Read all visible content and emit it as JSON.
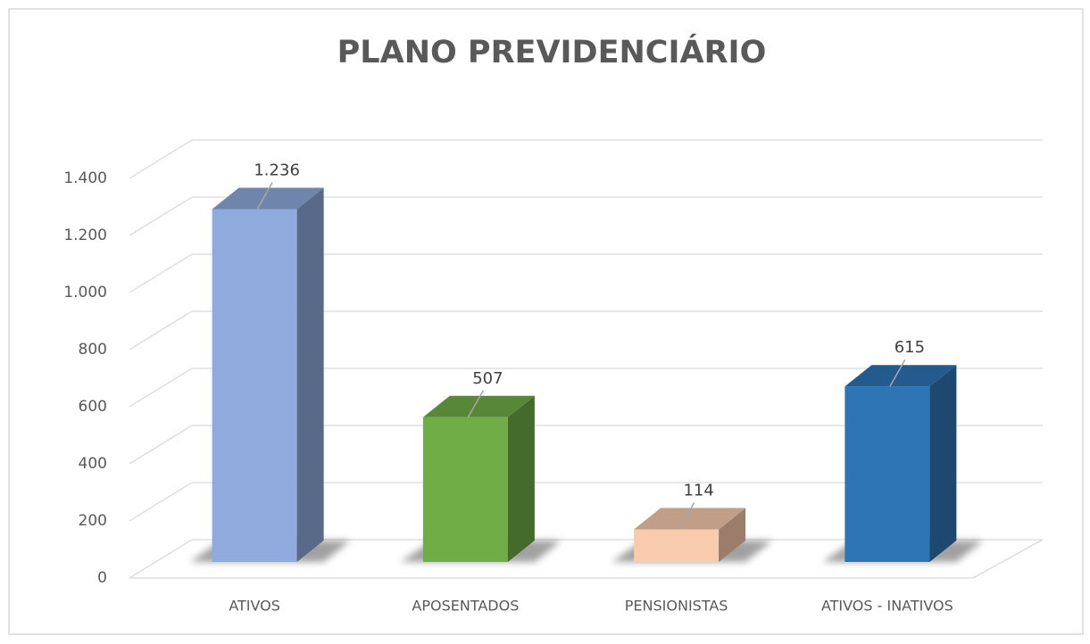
{
  "chart_data": {
    "type": "bar3d",
    "title": "PLANO PREVIDENCIÁRIO",
    "categories": [
      "ATIVOS",
      "APOSENTADOS",
      "PENSIONISTAS",
      "ATIVOS - INATIVOS"
    ],
    "values": [
      1236,
      507,
      114,
      615
    ],
    "value_labels": [
      "1.236",
      "507",
      "114",
      "615"
    ],
    "colors": [
      "#8faadc",
      "#70ad47",
      "#f8cbad",
      "#2e75b6"
    ],
    "ylim": [
      0,
      1400
    ],
    "yticks": [
      0,
      200,
      400,
      600,
      800,
      {
        "value": 1000,
        "label": "1.000"
      },
      {
        "value": 1200,
        "label": "1.200"
      },
      {
        "value": 1400,
        "label": "1.400"
      }
    ],
    "grid": true
  }
}
